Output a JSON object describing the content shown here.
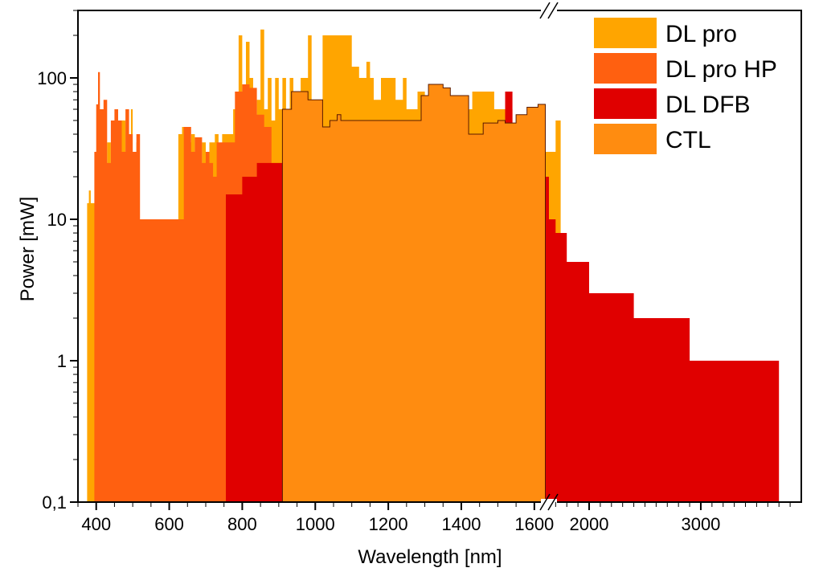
{
  "chart_data": {
    "type": "area",
    "xlabel": "Wavelength [nm]",
    "ylabel": "Power [mW]",
    "y_scale": "log",
    "ylim": [
      0.1,
      300
    ],
    "x_axis_break": {
      "linear_range": [
        350,
        1640
      ],
      "compressed_range": [
        1640,
        3900
      ]
    },
    "x_ticks": [
      {
        "value": 400,
        "label": "400"
      },
      {
        "value": 600,
        "label": "600"
      },
      {
        "value": 800,
        "label": "800"
      },
      {
        "value": 1000,
        "label": "1000"
      },
      {
        "value": 1200,
        "label": "1200"
      },
      {
        "value": 1400,
        "label": "1400"
      },
      {
        "value": 1600,
        "label": "1600"
      },
      {
        "value": 2000,
        "label": "2000"
      },
      {
        "value": 3000,
        "label": "3000"
      }
    ],
    "y_ticks": [
      {
        "value": 0.1,
        "label": "0,1"
      },
      {
        "value": 1,
        "label": "1"
      },
      {
        "value": 10,
        "label": "10"
      },
      {
        "value": 100,
        "label": "100"
      }
    ],
    "legend": {
      "placement": "top-right"
    },
    "series": [
      {
        "name": "DL pro",
        "color": "#FFA500",
        "points": [
          [
            375,
            13
          ],
          [
            380,
            16
          ],
          [
            385,
            13
          ],
          [
            400,
            13
          ],
          [
            405,
            40
          ],
          [
            420,
            13
          ],
          [
            430,
            35
          ],
          [
            440,
            15
          ],
          [
            460,
            15
          ],
          [
            470,
            50
          ],
          [
            480,
            20
          ],
          [
            490,
            10
          ],
          [
            495,
            60
          ],
          [
            500,
            20
          ],
          [
            510,
            35
          ],
          [
            515,
            10
          ],
          [
            520,
            10
          ],
          [
            625,
            40
          ],
          [
            635,
            45
          ],
          [
            645,
            35
          ],
          [
            660,
            40
          ],
          [
            670,
            30
          ],
          [
            680,
            20
          ],
          [
            690,
            35
          ],
          [
            700,
            15
          ],
          [
            710,
            35
          ],
          [
            725,
            40
          ],
          [
            735,
            25
          ],
          [
            745,
            40
          ],
          [
            750,
            40
          ],
          [
            775,
            60
          ],
          [
            790,
            200
          ],
          [
            800,
            50
          ],
          [
            810,
            180
          ],
          [
            820,
            100
          ],
          [
            830,
            55
          ],
          [
            840,
            70
          ],
          [
            850,
            220
          ],
          [
            860,
            60
          ],
          [
            870,
            100
          ],
          [
            880,
            50
          ],
          [
            890,
            100
          ],
          [
            900,
            60
          ],
          [
            910,
            100
          ],
          [
            920,
            50
          ],
          [
            930,
            100
          ],
          [
            940,
            60
          ],
          [
            960,
            100
          ],
          [
            980,
            200
          ],
          [
            990,
            70
          ],
          [
            1020,
            200
          ],
          [
            1090,
            200
          ],
          [
            1100,
            120
          ],
          [
            1120,
            100
          ],
          [
            1140,
            130
          ],
          [
            1150,
            100
          ],
          [
            1160,
            70
          ],
          [
            1180,
            100
          ],
          [
            1200,
            100
          ],
          [
            1220,
            70
          ],
          [
            1240,
            100
          ],
          [
            1250,
            60
          ],
          [
            1280,
            80
          ],
          [
            1300,
            70
          ],
          [
            1310,
            80
          ],
          [
            1320,
            70
          ],
          [
            1360,
            70
          ],
          [
            1380,
            60
          ],
          [
            1400,
            60
          ],
          [
            1430,
            80
          ],
          [
            1490,
            60
          ],
          [
            1520,
            60
          ],
          [
            1540,
            30
          ],
          [
            1560,
            40
          ],
          [
            1580,
            30
          ],
          [
            1600,
            20
          ],
          [
            1620,
            30
          ],
          [
            1640,
            30
          ],
          [
            1700,
            50
          ],
          [
            1740,
            50
          ],
          [
            1745,
            50
          ]
        ]
      },
      {
        "name": "DL pro HP",
        "color": "#FF6010",
        "points": [
          [
            395,
            30
          ],
          [
            400,
            65
          ],
          [
            405,
            110
          ],
          [
            410,
            60
          ],
          [
            420,
            70
          ],
          [
            430,
            25
          ],
          [
            440,
            50
          ],
          [
            450,
            60
          ],
          [
            460,
            50
          ],
          [
            470,
            30
          ],
          [
            480,
            60
          ],
          [
            490,
            40
          ],
          [
            500,
            30
          ],
          [
            510,
            40
          ],
          [
            520,
            10
          ],
          [
            640,
            45
          ],
          [
            660,
            30
          ],
          [
            670,
            38
          ],
          [
            690,
            25
          ],
          [
            700,
            30
          ],
          [
            710,
            25
          ],
          [
            720,
            20
          ],
          [
            730,
            35
          ],
          [
            780,
            80
          ],
          [
            800,
            90
          ],
          [
            820,
            85
          ],
          [
            840,
            55
          ],
          [
            860,
            45
          ],
          [
            880,
            40
          ]
        ]
      },
      {
        "name": "DL DFB",
        "color": "#E00000",
        "points": [
          [
            755,
            15
          ],
          [
            780,
            15
          ],
          [
            800,
            20
          ],
          [
            830,
            20
          ],
          [
            840,
            25
          ],
          [
            880,
            25
          ],
          [
            905,
            25
          ],
          [
            935,
            25
          ],
          [
            990,
            40
          ],
          [
            1040,
            40
          ],
          [
            1060,
            40
          ],
          [
            1100,
            10
          ],
          [
            1140,
            10
          ],
          [
            1180,
            25
          ],
          [
            1240,
            25
          ],
          [
            1260,
            10
          ],
          [
            1300,
            10
          ],
          [
            1340,
            10
          ],
          [
            1390,
            10
          ],
          [
            1420,
            10
          ],
          [
            1460,
            10
          ],
          [
            1480,
            10
          ],
          [
            1520,
            80
          ],
          [
            1540,
            30
          ],
          [
            1560,
            30
          ],
          [
            1600,
            20
          ],
          [
            1620,
            20
          ],
          [
            1640,
            10
          ],
          [
            1700,
            8
          ],
          [
            1800,
            5
          ],
          [
            1900,
            5
          ],
          [
            2000,
            3
          ],
          [
            2150,
            3
          ],
          [
            2400,
            2
          ],
          [
            2600,
            2
          ],
          [
            2900,
            1
          ],
          [
            3200,
            1
          ],
          [
            3400,
            1
          ],
          [
            3700,
            1
          ]
        ]
      },
      {
        "name": "CTL",
        "color": "#FF8C10",
        "points": [
          [
            910,
            60
          ],
          [
            935,
            80
          ],
          [
            960,
            80
          ],
          [
            980,
            70
          ],
          [
            1020,
            45
          ],
          [
            1040,
            50
          ],
          [
            1060,
            55
          ],
          [
            1070,
            50
          ],
          [
            1290,
            75
          ],
          [
            1310,
            90
          ],
          [
            1330,
            90
          ],
          [
            1350,
            85
          ],
          [
            1370,
            75
          ],
          [
            1420,
            40
          ],
          [
            1460,
            48
          ],
          [
            1500,
            50
          ],
          [
            1520,
            48
          ],
          [
            1550,
            55
          ],
          [
            1580,
            62
          ],
          [
            1610,
            65
          ],
          [
            1630,
            60
          ]
        ]
      }
    ]
  }
}
